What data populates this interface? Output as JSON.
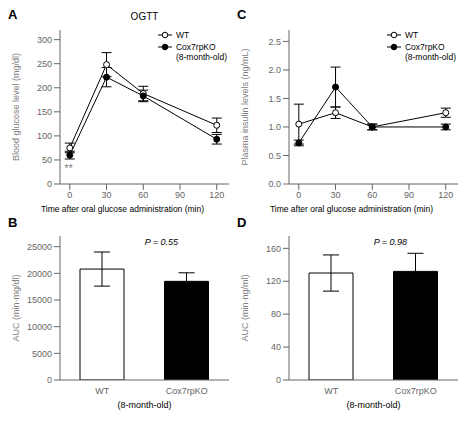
{
  "chart_data": [
    {
      "type": "line",
      "panel_label": "A",
      "title": "OGTT",
      "xlabel": "Time after oral glucose administration (min)",
      "ylabel": "Blood glucose level (mg/dl)",
      "x": [
        0,
        30,
        60,
        120
      ],
      "series": [
        {
          "name": "WT",
          "color": "#000000",
          "marker": "open",
          "values": [
            75,
            248,
            188,
            122
          ],
          "errors": [
            10,
            25,
            15,
            15
          ]
        },
        {
          "name": "Cox7rpKO\n(8-month-old)",
          "color": "#000000",
          "marker": "filled",
          "values": [
            60,
            222,
            183,
            93
          ],
          "errors": [
            8,
            20,
            12,
            10
          ]
        }
      ],
      "xlim": [
        -8,
        130
      ],
      "xticks": [
        0,
        30,
        60,
        90,
        120
      ],
      "ylim": [
        0,
        320
      ],
      "yticks": [
        0,
        50,
        100,
        150,
        200,
        250,
        300
      ],
      "annotations": [
        {
          "text": "**",
          "x": -1,
          "y": 42
        }
      ],
      "legend": "upper right",
      "grid": false
    },
    {
      "type": "line",
      "panel_label": "C",
      "xlabel": "Time after oral glucose administration (min)",
      "ylabel": "Plasma insulin levels (ng/mL)",
      "x": [
        0,
        30,
        60,
        120
      ],
      "series": [
        {
          "name": "WT",
          "color": "#000000",
          "marker": "open",
          "values": [
            1.05,
            1.25,
            1.0,
            1.25
          ],
          "errors": [
            0.35,
            0.1,
            0.05,
            0.08
          ]
        },
        {
          "name": "Cox7rpKO\n(8-month-old)",
          "color": "#000000",
          "marker": "filled",
          "values": [
            0.72,
            1.7,
            1.0,
            1.0
          ],
          "errors": [
            0.05,
            0.35,
            0.05,
            0.05
          ]
        }
      ],
      "xlim": [
        -8,
        130
      ],
      "xticks": [
        0,
        30,
        60,
        90,
        120
      ],
      "ylim": [
        0,
        2.7
      ],
      "yticks": [
        {
          "value": 0,
          "label": "0.0"
        },
        0.5,
        {
          "value": 1.0,
          "label": "1.0"
        },
        1.5,
        {
          "value": 2.0,
          "label": "2.0"
        },
        2.5
      ],
      "annotations": [],
      "legend": "upper right",
      "grid": false
    },
    {
      "type": "bar",
      "panel_label": "B",
      "xlabel": "(8-month-old)",
      "ylabel": "AUC (min·mg/dl)",
      "categories": [
        "WT",
        "Cox7rpKO"
      ],
      "values": [
        20800,
        18500
      ],
      "errors": [
        3200,
        1600
      ],
      "colors": [
        "#ffffff",
        "#000000"
      ],
      "ylim": [
        0,
        27000
      ],
      "yticks": [
        0,
        5000,
        10000,
        15000,
        20000,
        25000
      ],
      "annotations": [
        {
          "text": "P = 0.55"
        }
      ],
      "grid": false
    },
    {
      "type": "bar",
      "panel_label": "D",
      "xlabel": "(8-month-old)",
      "ylabel": "AUC (min·ng/ml)",
      "categories": [
        "WT",
        "Cox7rpKO"
      ],
      "values": [
        130,
        132
      ],
      "errors": [
        22,
        22
      ],
      "colors": [
        "#ffffff",
        "#000000"
      ],
      "ylim": [
        0,
        175
      ],
      "yticks": [
        0,
        40,
        80,
        120,
        160
      ],
      "annotations": [
        {
          "text": "P = 0.98"
        }
      ],
      "grid": false
    }
  ]
}
